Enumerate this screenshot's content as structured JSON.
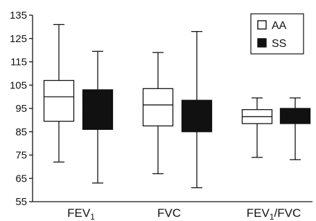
{
  "chart_data": {
    "type": "boxplot",
    "ylim": [
      55,
      135
    ],
    "yticks": [
      55,
      65,
      75,
      85,
      95,
      105,
      115,
      125,
      135
    ],
    "categories": [
      "FEV1",
      "FVC",
      "FEV1/FVC"
    ],
    "series": [
      {
        "name": "AA",
        "fill": "#ffffff",
        "boxes": [
          {
            "whisker_low": 72,
            "q1": 89.5,
            "median": 100,
            "q3": 107,
            "whisker_high": 131
          },
          {
            "whisker_low": 67,
            "q1": 87.5,
            "median": 96.5,
            "q3": 103.5,
            "whisker_high": 119
          },
          {
            "whisker_low": 74,
            "q1": 88.5,
            "median": 91.5,
            "q3": 94.5,
            "whisker_high": 99.5
          }
        ]
      },
      {
        "name": "SS",
        "fill": "#111111",
        "boxes": [
          {
            "whisker_low": 63,
            "q1": 86,
            "median": 94,
            "q3": 103,
            "whisker_high": 119.5
          },
          {
            "whisker_low": 61,
            "q1": 85,
            "median": 90,
            "q3": 98.5,
            "whisker_high": 128
          },
          {
            "whisker_low": 73,
            "q1": 88.5,
            "median": 92,
            "q3": 95,
            "whisker_high": 99.5
          }
        ]
      }
    ],
    "legend": {
      "position": "top-right",
      "entries": [
        "AA",
        "SS"
      ]
    },
    "grid": false
  }
}
